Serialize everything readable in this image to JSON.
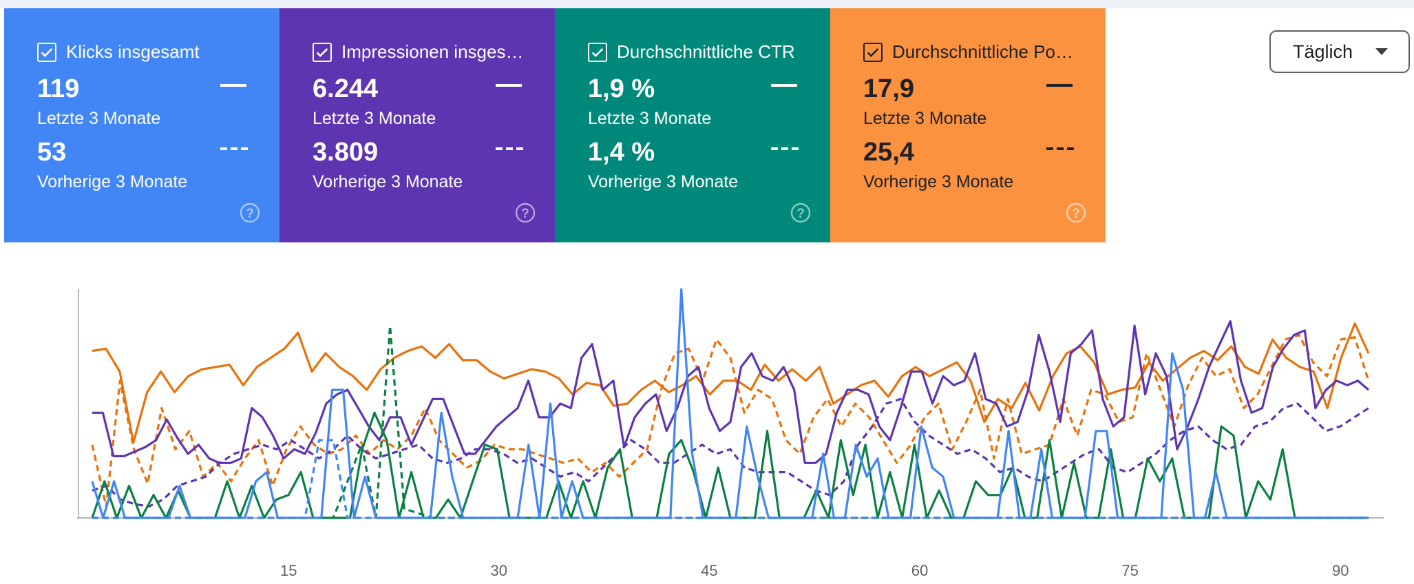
{
  "cards": [
    {
      "title": "Klicks insgesamt",
      "current_value": "119",
      "current_label": "Letzte 3 Monate",
      "previous_value": "53",
      "previous_label": "Vorherige 3 Monate",
      "color": "#4285f4",
      "checked": true
    },
    {
      "title": "Impressionen insges…",
      "current_value": "6.244",
      "current_label": "Letzte 3 Monate",
      "previous_value": "3.809",
      "previous_label": "Vorherige 3 Monate",
      "color": "#5e35b1",
      "checked": true
    },
    {
      "title": "Durchschnittliche CTR",
      "current_value": "1,9 %",
      "current_label": "Letzte 3 Monate",
      "previous_value": "1,4 %",
      "previous_label": "Vorherige 3 Monate",
      "color": "#00897b",
      "checked": true
    },
    {
      "title": "Durchschnittliche Po…",
      "current_value": "17,9",
      "current_label": "Letzte 3 Monate",
      "previous_value": "25,4",
      "previous_label": "Vorherige 3 Monate",
      "color": "#fb9240",
      "checked": true
    }
  ],
  "help_icon": "help-circle-icon",
  "range_dropdown": {
    "selected": "Täglich"
  },
  "chart_data": {
    "type": "line",
    "x_ticks": [
      "15",
      "30",
      "45",
      "60",
      "75",
      "90"
    ],
    "xlim": [
      1,
      92
    ],
    "ylim": [
      0,
      100
    ],
    "grid": false,
    "legend": "none",
    "series": [
      {
        "metric": "position",
        "period": "current",
        "style": "solid",
        "color": "#e8710a",
        "values": [
          73,
          74,
          64,
          33,
          55,
          64,
          55,
          62,
          65,
          66,
          67,
          58,
          66,
          70,
          74,
          81,
          64,
          72,
          66,
          62,
          56,
          65,
          70,
          73,
          75,
          70,
          76,
          69,
          69,
          64,
          61,
          63,
          65,
          64,
          61,
          54,
          59,
          58,
          49,
          50,
          56,
          60,
          55,
          58,
          62,
          54,
          60,
          60,
          56,
          67,
          60,
          65,
          60,
          66,
          50,
          54,
          58,
          60,
          53,
          62,
          66,
          62,
          65,
          68,
          60,
          42,
          52,
          48,
          59,
          47,
          62,
          72,
          75,
          68,
          54,
          56,
          57,
          68,
          60,
          65,
          70,
          73,
          69,
          75,
          66,
          63,
          78,
          70,
          66,
          64,
          48,
          70,
          85,
          72
        ]
      },
      {
        "metric": "position",
        "period": "previous",
        "style": "dashed",
        "color": "#e8710a",
        "values": [
          32,
          5,
          60,
          30,
          15,
          48,
          30,
          38,
          18,
          24,
          16,
          26,
          34,
          14,
          30,
          40,
          32,
          28,
          30,
          36,
          28,
          34,
          30,
          36,
          48,
          34,
          28,
          22,
          25,
          32,
          30,
          30,
          28,
          26,
          24,
          26,
          20,
          24,
          18,
          24,
          30,
          56,
          72,
          74,
          60,
          78,
          70,
          46,
          56,
          52,
          34,
          28,
          44,
          52,
          40,
          50,
          44,
          34,
          24,
          32,
          44,
          50,
          30,
          42,
          56,
          26,
          52,
          28,
          30,
          32,
          52,
          36,
          56,
          54,
          42,
          44,
          72,
          56,
          40,
          58,
          70,
          62,
          65,
          48,
          54,
          66,
          78,
          80,
          68,
          62,
          78,
          79,
          60
        ]
      },
      {
        "metric": "impressions",
        "period": "current",
        "style": "solid",
        "color": "#5e35b1",
        "values": [
          46,
          46,
          27,
          27,
          29,
          31,
          34,
          43,
          35,
          28,
          32,
          26,
          24,
          24,
          26,
          48,
          44,
          36,
          26,
          30,
          28,
          37,
          50,
          54,
          56,
          48,
          40,
          34,
          44,
          44,
          32,
          42,
          52,
          52,
          40,
          28,
          28,
          34,
          40,
          44,
          48,
          60,
          44,
          44,
          50,
          48,
          70,
          76,
          56,
          60,
          31,
          44,
          50,
          54,
          38,
          48,
          62,
          66,
          48,
          38,
          42,
          66,
          72,
          62,
          60,
          66,
          56,
          24,
          24,
          28,
          46,
          56,
          56,
          54,
          40,
          34,
          48,
          64,
          64,
          50,
          62,
          58,
          60,
          72,
          52,
          50,
          40,
          42,
          56,
          80,
          64,
          42,
          72,
          76,
          82,
          52,
          40,
          44,
          84,
          54,
          72,
          62,
          30,
          40,
          52,
          66,
          76,
          86,
          60,
          46,
          48,
          66,
          74,
          80,
          82,
          48,
          56,
          60,
          58,
          60,
          56
        ]
      },
      {
        "metric": "impressions",
        "period": "previous",
        "style": "dashed",
        "color": "#5e35b1",
        "values": [
          12,
          14,
          8,
          6,
          5,
          8,
          14,
          16,
          18,
          24,
          28,
          30,
          32,
          30,
          34,
          30,
          26,
          30,
          36,
          30,
          26,
          28,
          30,
          32,
          26,
          24,
          26,
          30,
          30,
          28,
          24,
          26,
          22,
          18,
          20,
          16,
          22,
          28,
          34,
          30,
          24,
          24,
          28,
          32,
          28,
          30,
          22,
          20,
          20,
          20,
          16,
          12,
          10,
          16,
          32,
          40,
          50,
          52,
          42,
          36,
          32,
          28,
          30,
          26,
          20,
          22,
          18,
          16,
          20,
          24,
          28,
          30,
          22,
          20,
          24,
          28,
          34,
          38,
          40,
          34,
          30,
          32,
          40,
          42,
          48,
          50,
          44,
          38,
          40,
          44,
          48
        ]
      },
      {
        "metric": "ctr",
        "period": "current",
        "style": "solid",
        "color": "#0b8043",
        "values": [
          0,
          16,
          0,
          14,
          0,
          10,
          0,
          12,
          0,
          0,
          0,
          16,
          0,
          14,
          0,
          8,
          10,
          20,
          0,
          0,
          0,
          0,
          30,
          46,
          34,
          0,
          20,
          0,
          0,
          8,
          0,
          16,
          32,
          30,
          0,
          0,
          0,
          0,
          16,
          0,
          16,
          0,
          22,
          30,
          0,
          0,
          0,
          28,
          34,
          20,
          0,
          22,
          0,
          0,
          0,
          38,
          0,
          0,
          0,
          12,
          0,
          34,
          10,
          32,
          0,
          20,
          0,
          32,
          0,
          12,
          0,
          0,
          16,
          10,
          10,
          22,
          0,
          0,
          34,
          0,
          24,
          0,
          0,
          30,
          0,
          0,
          26,
          16,
          26,
          0,
          0,
          0,
          40,
          36,
          0,
          16,
          8,
          30,
          0,
          0,
          0,
          0,
          0,
          0,
          0
        ]
      },
      {
        "metric": "ctr",
        "period": "previous",
        "style": "dashed",
        "color": "#0b8043",
        "values": [
          0,
          0,
          0,
          0,
          0,
          0,
          0,
          0,
          0,
          0,
          0,
          0,
          0,
          0,
          0,
          0,
          0,
          0,
          16,
          32,
          0,
          84,
          4,
          2,
          0,
          0,
          0,
          0,
          0,
          0,
          0,
          0,
          0,
          0,
          0,
          0,
          0,
          0,
          0,
          0,
          0,
          0,
          0,
          0,
          0,
          0,
          0,
          0,
          0,
          0,
          0,
          0,
          0,
          0,
          0,
          0,
          0,
          0,
          0,
          0,
          0,
          0,
          0,
          0,
          0,
          0,
          0,
          0,
          0,
          0,
          0,
          0,
          0,
          0,
          0,
          0,
          0,
          0,
          0,
          0,
          0,
          0,
          0,
          0,
          0,
          0,
          0,
          0,
          0,
          0,
          0
        ]
      },
      {
        "metric": "clicks",
        "period": "current",
        "style": "solid",
        "color": "#4285f4",
        "values": [
          16,
          0,
          16,
          0,
          0,
          0,
          0,
          0,
          14,
          0,
          0,
          0,
          0,
          0,
          0,
          16,
          20,
          0,
          0,
          0,
          0,
          0,
          56,
          56,
          0,
          18,
          0,
          0,
          0,
          0,
          0,
          0,
          46,
          18,
          0,
          0,
          0,
          0,
          0,
          0,
          32,
          0,
          50,
          0,
          16,
          0,
          0,
          0,
          0,
          0,
          0,
          0,
          0,
          0,
          100,
          28,
          0,
          0,
          0,
          0,
          40,
          18,
          0,
          0,
          0,
          0,
          0,
          28,
          0,
          0,
          32,
          18,
          26,
          0,
          0,
          0,
          40,
          22,
          18,
          0,
          0,
          0,
          0,
          0,
          38,
          0,
          0,
          30,
          0,
          0,
          0,
          0,
          38,
          38,
          0,
          0,
          0,
          0,
          0,
          72,
          56,
          0,
          0,
          20,
          0,
          0,
          0,
          0,
          0,
          0,
          0,
          0,
          0,
          0,
          0,
          0,
          0,
          0
        ]
      },
      {
        "metric": "clicks",
        "period": "previous",
        "style": "dashed",
        "color": "#4285f4",
        "values": [
          0,
          0,
          0,
          0,
          0,
          0,
          0,
          0,
          0,
          0,
          0,
          0,
          0,
          0,
          0,
          0,
          34,
          34,
          0,
          0,
          0,
          0,
          0,
          0,
          0,
          0,
          0,
          0,
          0,
          0,
          0,
          0,
          0,
          0,
          0,
          0,
          0,
          0,
          0,
          0,
          0,
          0,
          0,
          0,
          0,
          0,
          0,
          0,
          0,
          0,
          0,
          0,
          0,
          0,
          0,
          0,
          0,
          0,
          0,
          0,
          0,
          0,
          0,
          0,
          0,
          0,
          0,
          0,
          0,
          0,
          0,
          0,
          0,
          0,
          0,
          0,
          0,
          0,
          0,
          0,
          0,
          0,
          0,
          0,
          0,
          0,
          0,
          0,
          0,
          0,
          0
        ]
      }
    ]
  }
}
